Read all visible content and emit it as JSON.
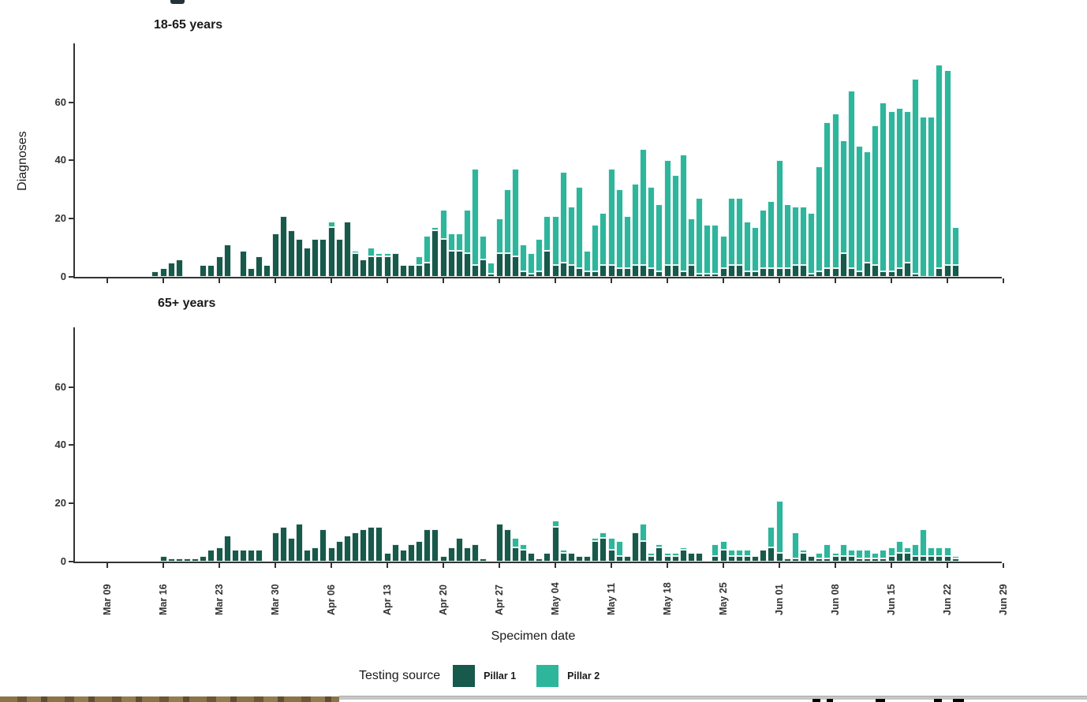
{
  "figure": {
    "panel_titles": [
      "18-65 years",
      "65+ years"
    ],
    "y_axis_label": "Diagnoses",
    "x_axis_label": "Specimen date",
    "y_tick_labels": [
      "0",
      "20",
      "40",
      "60"
    ],
    "x_tick_labels": [
      "Mar 09",
      "Mar 16",
      "Mar 23",
      "Mar 30",
      "Apr 06",
      "Apr 13",
      "Apr 20",
      "Apr 27",
      "May 04",
      "May 11",
      "May 18",
      "May 25",
      "Jun 01",
      "Jun 08",
      "Jun 15",
      "Jun 22",
      "Jun 29"
    ]
  },
  "legend": {
    "title": "Testing source",
    "items": [
      {
        "label": "Pillar 1",
        "color": "#17594b"
      },
      {
        "label": "Pillar 2",
        "color": "#2eb69c"
      }
    ]
  },
  "colors": {
    "pillar1": "#17594b",
    "pillar2": "#2eb69c",
    "axis": "#333333",
    "background": "#ffffff"
  },
  "chart_data": [
    {
      "type": "bar",
      "stacked": true,
      "title": "18-65 years",
      "ylabel": "Diagnoses",
      "xlabel": "Specimen date",
      "ylim": [
        0,
        80
      ],
      "grid": false,
      "legend_position": "bottom",
      "x": {
        "start": "Mar 09",
        "end": "Jun 23",
        "frequency": "daily",
        "n_days": 107
      },
      "x_tick_labels": [
        "Mar 09",
        "Mar 16",
        "Mar 23",
        "Mar 30",
        "Apr 06",
        "Apr 13",
        "Apr 20",
        "Apr 27",
        "May 04",
        "May 11",
        "May 18",
        "May 25",
        "Jun 01",
        "Jun 08",
        "Jun 15",
        "Jun 22",
        "Jun 29"
      ],
      "series": [
        {
          "name": "Pillar 1",
          "color": "#17594b",
          "values": [
            0,
            0,
            0,
            0,
            0,
            0,
            2,
            3,
            5,
            6,
            0,
            0,
            4,
            4,
            7,
            11,
            0,
            9,
            3,
            7,
            4,
            15,
            21,
            16,
            13,
            10,
            13,
            13,
            17,
            13,
            19,
            8,
            6,
            7,
            7,
            7,
            8,
            4,
            4,
            4,
            5,
            16,
            13,
            9,
            9,
            8,
            4,
            6,
            1,
            8,
            8,
            7,
            2,
            1,
            2,
            9,
            4,
            5,
            4,
            3,
            2,
            2,
            4,
            4,
            3,
            3,
            4,
            4,
            3,
            2,
            4,
            4,
            2,
            4,
            1,
            1,
            1,
            3,
            4,
            4,
            2,
            2,
            3,
            3,
            3,
            3,
            4,
            4,
            1,
            2,
            3,
            3,
            8,
            3,
            2,
            5,
            4,
            2,
            2,
            3,
            5,
            1,
            0,
            0,
            3,
            4,
            4
          ]
        },
        {
          "name": "Pillar 2",
          "color": "#2eb69c",
          "values": [
            0,
            0,
            0,
            0,
            0,
            0,
            0,
            0,
            0,
            0,
            0,
            0,
            0,
            0,
            0,
            0,
            0,
            0,
            0,
            0,
            0,
            0,
            0,
            0,
            0,
            0,
            0,
            0,
            2,
            0,
            0,
            1,
            0,
            3,
            1,
            1,
            0,
            0,
            0,
            3,
            9,
            1,
            10,
            6,
            6,
            15,
            33,
            8,
            4,
            12,
            22,
            30,
            9,
            7,
            11,
            12,
            17,
            31,
            20,
            28,
            7,
            16,
            18,
            33,
            27,
            18,
            28,
            40,
            28,
            23,
            36,
            31,
            40,
            16,
            26,
            17,
            17,
            11,
            23,
            23,
            17,
            15,
            20,
            23,
            37,
            22,
            20,
            20,
            21,
            36,
            50,
            53,
            39,
            61,
            43,
            38,
            48,
            58,
            55,
            55,
            52,
            67,
            55,
            55,
            70,
            67,
            13
          ]
        }
      ]
    },
    {
      "type": "bar",
      "stacked": true,
      "title": "65+ years",
      "ylabel": "Diagnoses",
      "xlabel": "Specimen date",
      "ylim": [
        0,
        80
      ],
      "grid": false,
      "legend_position": "bottom",
      "x": {
        "start": "Mar 09",
        "end": "Jun 23",
        "frequency": "daily",
        "n_days": 107
      },
      "x_tick_labels": [
        "Mar 09",
        "Mar 16",
        "Mar 23",
        "Mar 30",
        "Apr 06",
        "Apr 13",
        "Apr 20",
        "Apr 27",
        "May 04",
        "May 11",
        "May 18",
        "May 25",
        "Jun 01",
        "Jun 08",
        "Jun 15",
        "Jun 22",
        "Jun 29"
      ],
      "series": [
        {
          "name": "Pillar 1",
          "color": "#17594b",
          "values": [
            0,
            0,
            0,
            0,
            0,
            0,
            0,
            2,
            1,
            1,
            1,
            1,
            2,
            4,
            5,
            9,
            4,
            4,
            4,
            4,
            0,
            10,
            12,
            8,
            13,
            4,
            5,
            11,
            5,
            7,
            9,
            10,
            11,
            12,
            12,
            3,
            6,
            4,
            6,
            7,
            11,
            11,
            2,
            5,
            8,
            5,
            6,
            1,
            0,
            13,
            11,
            5,
            4,
            3,
            1,
            3,
            12,
            3,
            3,
            2,
            2,
            7,
            8,
            4,
            2,
            2,
            10,
            7,
            2,
            5,
            2,
            2,
            4,
            3,
            3,
            0,
            2,
            4,
            2,
            2,
            2,
            2,
            4,
            5,
            3,
            1,
            1,
            3,
            2,
            1,
            1,
            2,
            2,
            2,
            1,
            1,
            1,
            1,
            2,
            3,
            3,
            2,
            2,
            2,
            2,
            2,
            1
          ]
        },
        {
          "name": "Pillar 2",
          "color": "#2eb69c",
          "values": [
            0,
            0,
            0,
            0,
            0,
            0,
            0,
            0,
            0,
            0,
            0,
            0,
            0,
            0,
            0,
            0,
            0,
            0,
            0,
            0,
            0,
            0,
            0,
            0,
            0,
            0,
            0,
            0,
            0,
            0,
            0,
            0,
            0,
            0,
            0,
            0,
            0,
            0,
            0,
            0,
            0,
            0,
            0,
            0,
            0,
            0,
            0,
            0,
            0,
            0,
            0,
            3,
            2,
            0,
            0,
            0,
            2,
            1,
            0,
            0,
            0,
            1,
            2,
            4,
            5,
            0,
            0,
            6,
            1,
            1,
            1,
            1,
            1,
            0,
            0,
            0,
            4,
            3,
            2,
            2,
            2,
            0,
            0,
            7,
            18,
            0,
            9,
            1,
            0,
            2,
            5,
            1,
            4,
            2,
            3,
            3,
            2,
            3,
            3,
            4,
            2,
            4,
            9,
            3,
            3,
            3,
            1
          ]
        }
      ]
    }
  ]
}
